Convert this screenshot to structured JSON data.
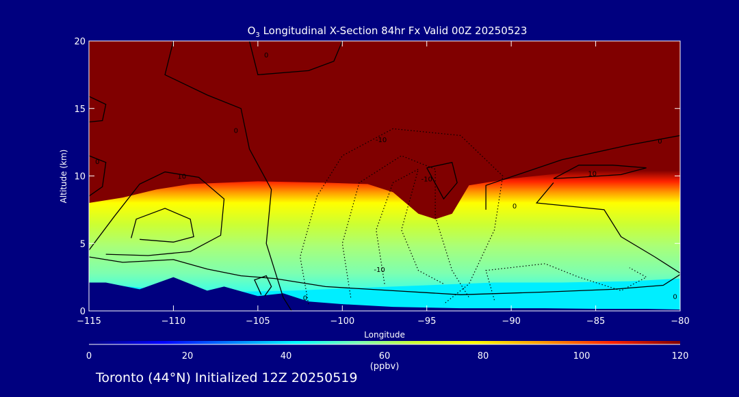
{
  "chart_data": {
    "type": "heatmap",
    "title": "O3 Longitudinal X-Section 84hr  Fx Valid 00Z 20250523",
    "title_parts": {
      "species": "O",
      "species_sub": "3",
      "rest": " Longitudinal X-Section 84hr  Fx Valid 00Z 20250523"
    },
    "xlabel": "Longitude",
    "ylabel": "Altitude (km)",
    "xlim": [
      -115,
      -80
    ],
    "ylim": [
      0,
      20
    ],
    "xticks": [
      -115,
      -110,
      -105,
      -100,
      -95,
      -90,
      -85,
      -80
    ],
    "xtick_labels": [
      "−115",
      "−110",
      "−105",
      "−100",
      "−95",
      "−90",
      "−85",
      "−80"
    ],
    "yticks": [
      0,
      5,
      10,
      15,
      20
    ],
    "ytick_labels": [
      "0",
      "5",
      "10",
      "15",
      "20"
    ],
    "colorbar": {
      "min": 0,
      "max": 120,
      "ticks": [
        0,
        20,
        40,
        60,
        80,
        100,
        120
      ],
      "tick_labels": [
        "0",
        "20",
        "40",
        "60",
        "80",
        "100",
        "120"
      ],
      "unit": "(ppbv)",
      "stops": [
        {
          "v": 0,
          "c": "#000080"
        },
        {
          "v": 15,
          "c": "#0000ff"
        },
        {
          "v": 30,
          "c": "#0088ff"
        },
        {
          "v": 42,
          "c": "#00ffff"
        },
        {
          "v": 55,
          "c": "#7dffb0"
        },
        {
          "v": 66,
          "c": "#ccff33"
        },
        {
          "v": 78,
          "c": "#ffff00"
        },
        {
          "v": 92,
          "c": "#ff9900"
        },
        {
          "v": 106,
          "c": "#ff2200"
        },
        {
          "v": 120,
          "c": "#800000"
        }
      ]
    },
    "boundary_layer_top_km": [
      {
        "lon": -115,
        "km": 2.1
      },
      {
        "lon": -111,
        "km": 1.6
      },
      {
        "lon": -107,
        "km": 1.4
      },
      {
        "lon": -103,
        "km": 1.5
      },
      {
        "lon": -99,
        "km": 1.7
      },
      {
        "lon": -95,
        "km": 1.9
      },
      {
        "lon": -91,
        "km": 2.1
      },
      {
        "lon": -87,
        "km": 2.1
      },
      {
        "lon": -83,
        "km": 2.2
      },
      {
        "lon": -80,
        "km": 2.4
      }
    ],
    "tropopause_km": [
      {
        "lon": -115,
        "km": 8.0
      },
      {
        "lon": -113,
        "km": 8.4
      },
      {
        "lon": -111,
        "km": 9.0
      },
      {
        "lon": -109,
        "km": 9.4
      },
      {
        "lon": -105,
        "km": 9.6
      },
      {
        "lon": -101,
        "km": 9.5
      },
      {
        "lon": -98.5,
        "km": 9.4
      },
      {
        "lon": -97,
        "km": 8.8
      },
      {
        "lon": -95.5,
        "km": 7.2
      },
      {
        "lon": -94.5,
        "km": 6.8
      },
      {
        "lon": -93.5,
        "km": 7.2
      },
      {
        "lon": -92.5,
        "km": 9.3
      },
      {
        "lon": -90,
        "km": 9.8
      },
      {
        "lon": -87,
        "km": 10.2
      },
      {
        "lon": -84,
        "km": 10.8
      },
      {
        "lon": -80,
        "km": 11.0
      }
    ],
    "surface_terrain_km": [
      {
        "lon": -115,
        "km": 2.1
      },
      {
        "lon": -114,
        "km": 2.1
      },
      {
        "lon": -112,
        "km": 1.6
      },
      {
        "lon": -110,
        "km": 2.5
      },
      {
        "lon": -108,
        "km": 1.5
      },
      {
        "lon": -107,
        "km": 1.8
      },
      {
        "lon": -105,
        "km": 1.1
      },
      {
        "lon": -103.5,
        "km": 1.3
      },
      {
        "lon": -102,
        "km": 0.7
      },
      {
        "lon": -100,
        "km": 0.5
      },
      {
        "lon": -97,
        "km": 0.3
      },
      {
        "lon": -93,
        "km": 0.2
      },
      {
        "lon": -88,
        "km": 0.2
      },
      {
        "lon": -85,
        "km": 0.15
      },
      {
        "lon": -82,
        "km": 0.15
      },
      {
        "lon": -80,
        "km": 0.1
      }
    ],
    "contours": [
      {
        "level": -10,
        "style": "dashed",
        "points": [
          [
            -102,
            0.5
          ],
          [
            -102.5,
            4
          ],
          [
            -101.5,
            8.5
          ],
          [
            -100,
            11.5
          ],
          [
            -97,
            13.5
          ],
          [
            -93,
            13
          ],
          [
            -90.5,
            10
          ],
          [
            -91,
            6
          ],
          [
            -92.5,
            2
          ],
          [
            -94,
            0.5
          ]
        ]
      },
      {
        "level": -10,
        "style": "dashed",
        "points": [
          [
            -99.5,
            1
          ],
          [
            -100,
            5
          ],
          [
            -99,
            9.5
          ],
          [
            -96.5,
            11.5
          ],
          [
            -94.5,
            10.5
          ],
          [
            -94.5,
            7
          ],
          [
            -93.5,
            3
          ],
          [
            -92.5,
            1
          ]
        ]
      },
      {
        "level": -10,
        "style": "dashed",
        "points": [
          [
            -97.5,
            2
          ],
          [
            -98,
            6
          ],
          [
            -97,
            9.5
          ],
          [
            -95.5,
            10.5
          ],
          [
            -96.5,
            6
          ],
          [
            -95.5,
            3
          ],
          [
            -94,
            2
          ]
        ]
      },
      {
        "level": -10,
        "style": "dashed",
        "points": [
          [
            -91,
            0.8
          ],
          [
            -91.5,
            3
          ],
          [
            -88,
            3.5
          ],
          [
            -86,
            2.5
          ],
          [
            -83.5,
            1.5
          ],
          [
            -82,
            2.5
          ],
          [
            -83,
            3.2
          ]
        ]
      },
      {
        "level": 0,
        "style": "solid",
        "points": [
          [
            -110,
            20
          ],
          [
            -110.5,
            17.5
          ],
          [
            -108,
            16
          ],
          [
            -106,
            15
          ],
          [
            -105.5,
            12
          ],
          [
            -104.2,
            9
          ],
          [
            -104.5,
            5
          ],
          [
            -103.5,
            1
          ],
          [
            -103,
            0
          ]
        ]
      },
      {
        "level": 0,
        "style": "solid",
        "points": [
          [
            -105.5,
            20
          ],
          [
            -105,
            17.5
          ],
          [
            -102,
            17.8
          ],
          [
            -100.5,
            18.5
          ],
          [
            -100,
            20
          ]
        ]
      },
      {
        "level": 0,
        "style": "solid",
        "points": [
          [
            -115,
            4
          ],
          [
            -113,
            3.6
          ],
          [
            -110,
            3.8
          ],
          [
            -108,
            3.1
          ],
          [
            -106,
            2.6
          ],
          [
            -104,
            2.4
          ],
          [
            -101,
            1.8
          ],
          [
            -97,
            1.5
          ],
          [
            -93,
            1.2
          ],
          [
            -88,
            1.4
          ],
          [
            -84,
            1.6
          ],
          [
            -81,
            1.9
          ],
          [
            -80,
            2.7
          ]
        ]
      },
      {
        "level": 0,
        "style": "solid",
        "points": [
          [
            -91.5,
            7.5
          ],
          [
            -91.5,
            9.3
          ],
          [
            -87,
            11.2
          ],
          [
            -83,
            12.3
          ],
          [
            -80,
            13
          ]
        ]
      },
      {
        "level": 0,
        "style": "solid",
        "points": [
          [
            -87.5,
            9.5
          ],
          [
            -88.5,
            8
          ],
          [
            -84.5,
            7.5
          ],
          [
            -83.5,
            5.5
          ],
          [
            -81.5,
            4
          ],
          [
            -80,
            2.8
          ]
        ]
      },
      {
        "level": 0,
        "style": "solid",
        "points": [
          [
            -115,
            11.5
          ],
          [
            -114,
            11
          ],
          [
            -114.2,
            9.2
          ],
          [
            -115,
            8.5
          ]
        ]
      },
      {
        "level": 0,
        "style": "solid",
        "points": [
          [
            -115,
            15.9
          ],
          [
            -114,
            15.3
          ],
          [
            -114.2,
            14.1
          ],
          [
            -115,
            14
          ]
        ]
      },
      {
        "level": 10,
        "style": "solid",
        "points": [
          [
            -115,
            4.5
          ],
          [
            -113.5,
            7
          ],
          [
            -112,
            9.4
          ],
          [
            -110.5,
            10.3
          ],
          [
            -108.5,
            9.9
          ],
          [
            -107,
            8.3
          ],
          [
            -107.2,
            5.6
          ],
          [
            -109,
            4.4
          ],
          [
            -111.5,
            4.1
          ],
          [
            -114,
            4.2
          ]
        ]
      },
      {
        "level": 10,
        "style": "solid",
        "points": [
          [
            -112.5,
            5.4
          ],
          [
            -112.2,
            6.8
          ],
          [
            -110.5,
            7.6
          ],
          [
            -109,
            6.8
          ],
          [
            -108.8,
            5.5
          ],
          [
            -110,
            5.1
          ],
          [
            -112,
            5.3
          ]
        ]
      },
      {
        "level": 10,
        "style": "solid",
        "points": [
          [
            -87.5,
            9.8
          ],
          [
            -86,
            10.8
          ],
          [
            -84,
            10.8
          ],
          [
            -82,
            10.6
          ],
          [
            -83.5,
            10.1
          ],
          [
            -86,
            9.9
          ],
          [
            -87.5,
            9.8
          ]
        ]
      },
      {
        "level": 10,
        "style": "solid",
        "points": [
          [
            -95,
            10.6
          ],
          [
            -94,
            8.3
          ],
          [
            -93.2,
            9.5
          ],
          [
            -93.5,
            11
          ],
          [
            -95,
            10.6
          ]
        ]
      },
      {
        "level": 0,
        "style": "solid",
        "points": [
          [
            -104.8,
            1.2
          ],
          [
            -105.2,
            2.3
          ],
          [
            -104.5,
            2.6
          ],
          [
            -104.2,
            1.8
          ],
          [
            -104.6,
            1.1
          ]
        ]
      }
    ],
    "contour_labels": [
      {
        "text": "0",
        "lon": -104.5,
        "km": 19
      },
      {
        "text": "0",
        "lon": -106.3,
        "km": 13.4
      },
      {
        "text": "0",
        "lon": -114.5,
        "km": 11.1
      },
      {
        "text": "10",
        "lon": -109.5,
        "km": 10
      },
      {
        "text": "-10",
        "lon": -97.7,
        "km": 12.7
      },
      {
        "text": "-10",
        "lon": -95,
        "km": 9.8
      },
      {
        "text": "-10",
        "lon": -97.8,
        "km": 3.1
      },
      {
        "text": "0",
        "lon": -102.2,
        "km": 1.0
      },
      {
        "text": "0",
        "lon": -89.8,
        "km": 7.8
      },
      {
        "text": "10",
        "lon": -85.2,
        "km": 10.2
      },
      {
        "text": "0",
        "lon": -81.2,
        "km": 12.6
      },
      {
        "text": "0",
        "lon": -80.3,
        "km": 1.1
      }
    ]
  },
  "footer": {
    "text": "Toronto (44°N) Initialized 12Z 20250519"
  }
}
